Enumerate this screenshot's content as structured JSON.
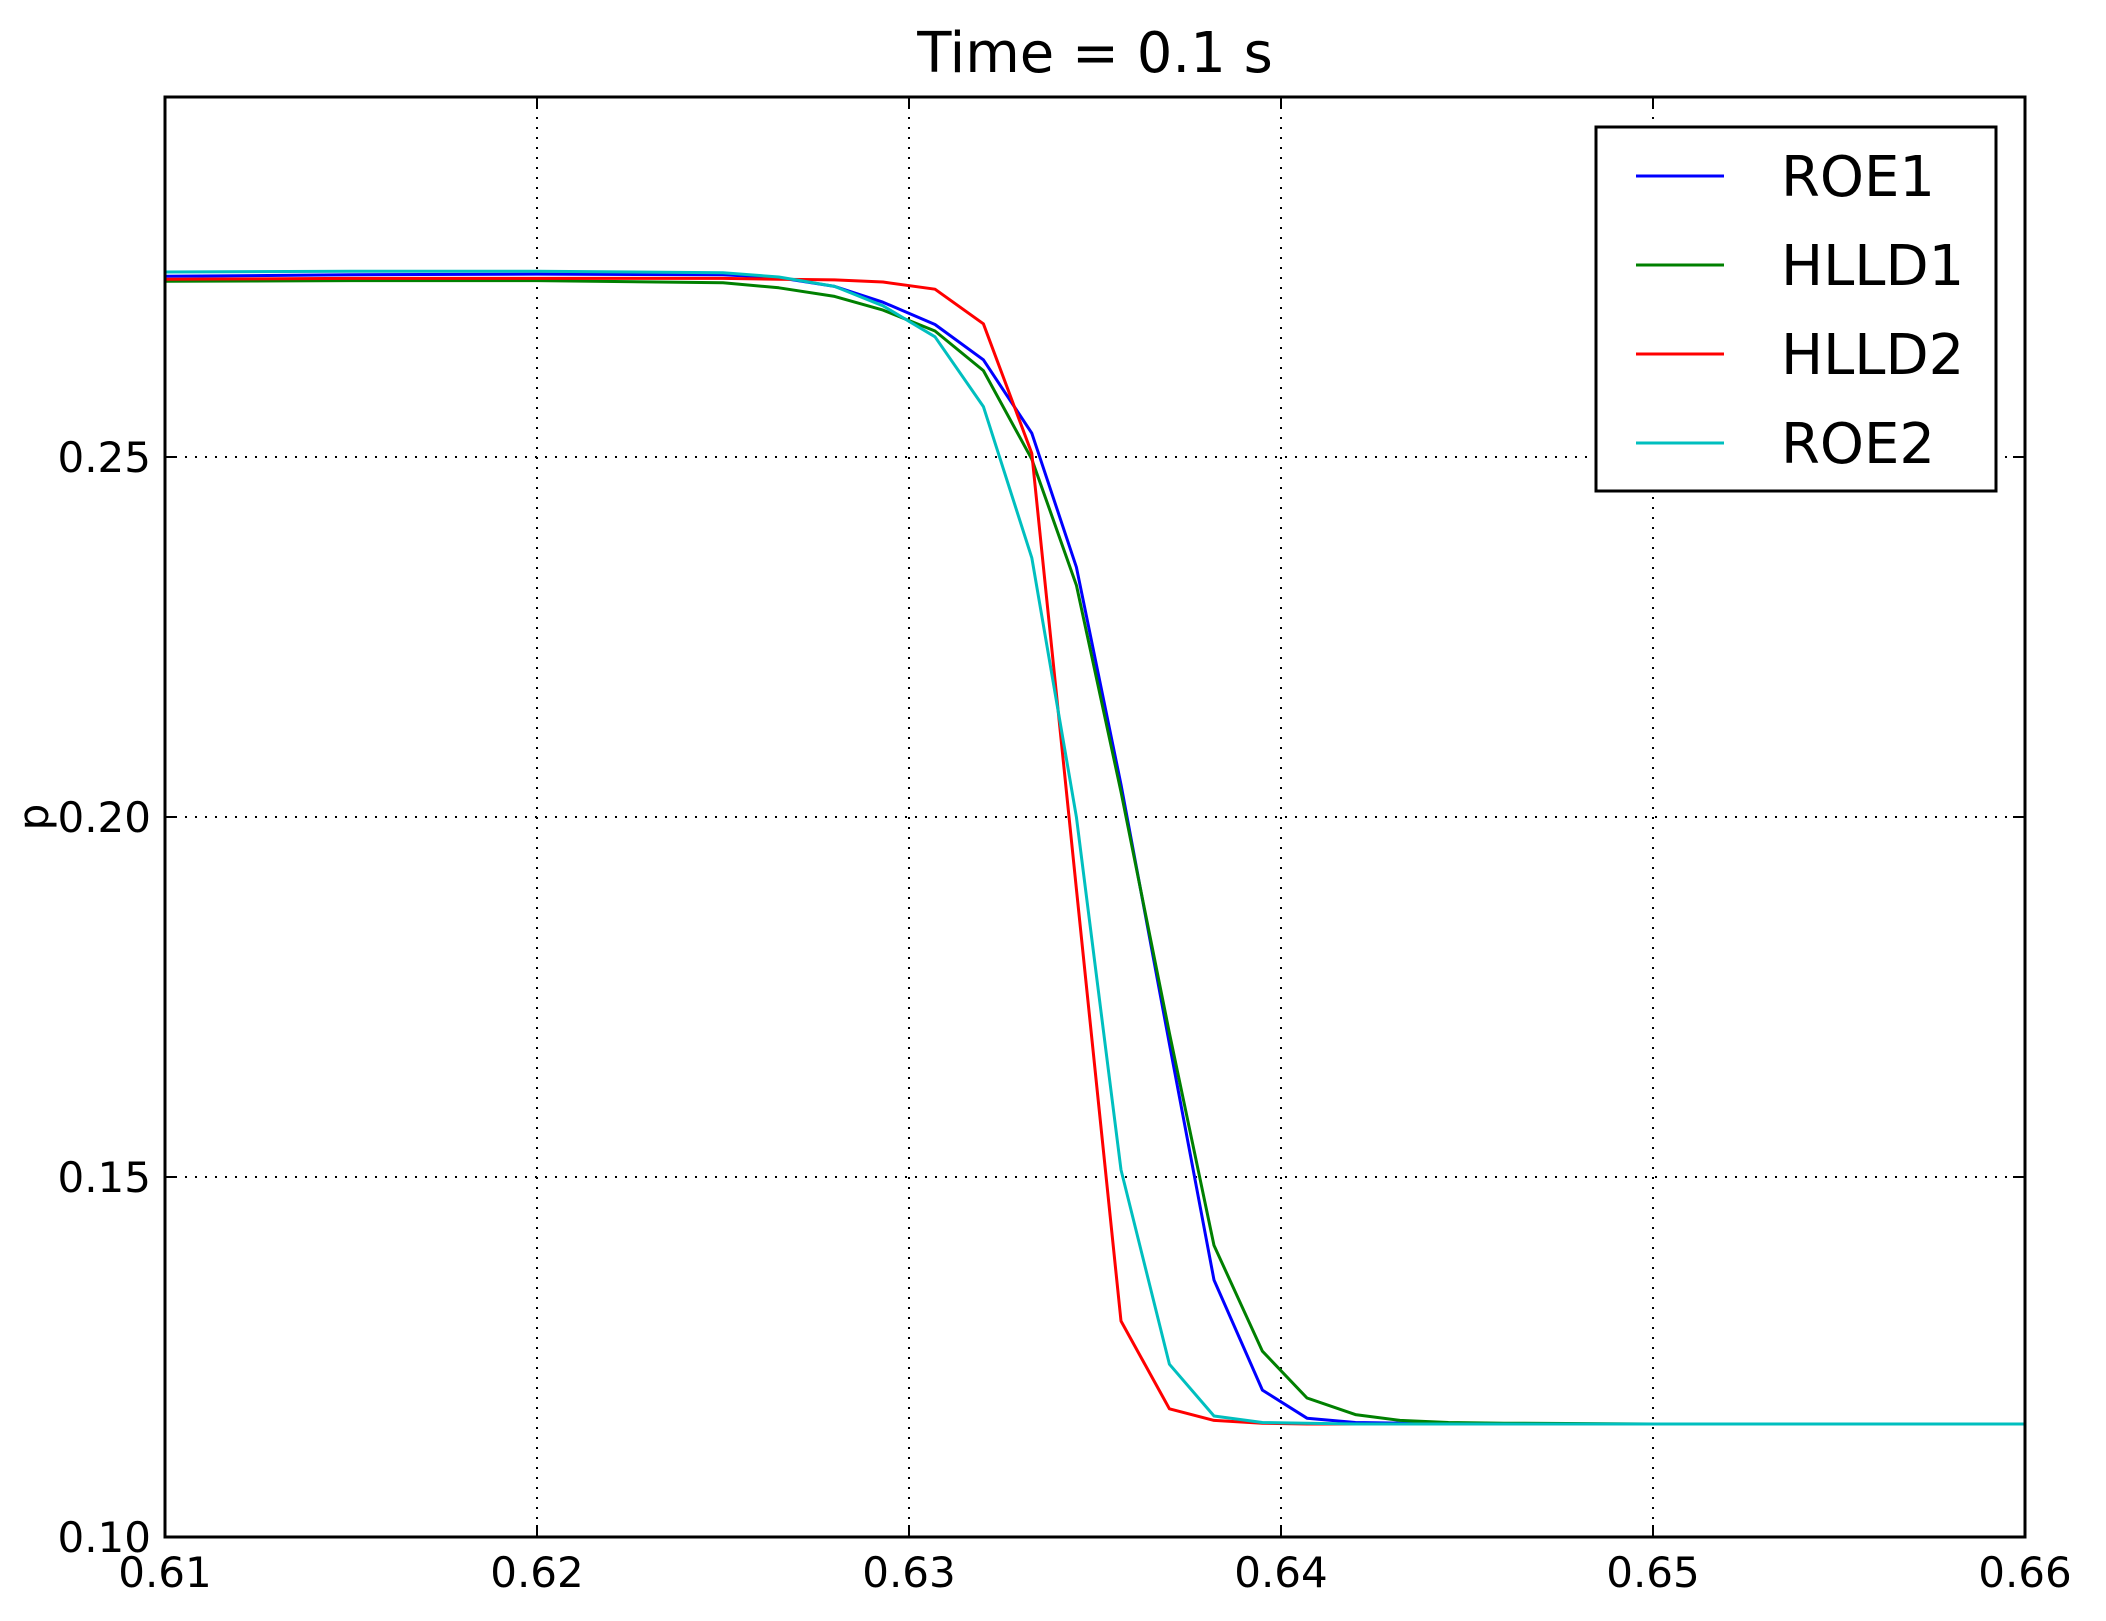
{
  "chart_data": {
    "type": "line",
    "title": "Time = 0.1 s",
    "xlabel": "",
    "ylabel": "p",
    "xlim": [
      0.61,
      0.66
    ],
    "ylim": [
      0.1,
      0.3
    ],
    "xticks": [
      0.61,
      0.62,
      0.63,
      0.64,
      0.65,
      0.66
    ],
    "xtick_labels": [
      "0.61",
      "0.62",
      "0.63",
      "0.64",
      "0.65",
      "0.66"
    ],
    "yticks": [
      0.1,
      0.15,
      0.2,
      0.25
    ],
    "ytick_labels": [
      "0.10",
      "0.15",
      "0.20",
      "0.25"
    ],
    "grid": true,
    "legend_position": "top-right",
    "series": [
      {
        "name": "ROE1",
        "color": "#0000ff",
        "x": [
          0.61,
          0.615,
          0.62,
          0.625,
          0.6265,
          0.628,
          0.6293,
          0.6307,
          0.632,
          0.6333,
          0.6345,
          0.6357,
          0.637,
          0.6382,
          0.6395,
          0.6407,
          0.642,
          0.6432,
          0.6445,
          0.646,
          0.65,
          0.66
        ],
        "y": [
          0.2751,
          0.2753,
          0.2754,
          0.2753,
          0.2749,
          0.2737,
          0.2715,
          0.2684,
          0.2635,
          0.2533,
          0.2347,
          0.2045,
          0.1685,
          0.1357,
          0.1204,
          0.1165,
          0.1159,
          0.1158,
          0.1157,
          0.1157,
          0.1157,
          0.1157
        ]
      },
      {
        "name": "HLLD1",
        "color": "#008000",
        "x": [
          0.61,
          0.615,
          0.62,
          0.625,
          0.6265,
          0.628,
          0.6293,
          0.6307,
          0.632,
          0.6333,
          0.6345,
          0.6357,
          0.637,
          0.6382,
          0.6395,
          0.6407,
          0.642,
          0.6432,
          0.6445,
          0.646,
          0.65,
          0.66
        ],
        "y": [
          0.2744,
          0.2745,
          0.2745,
          0.2742,
          0.2735,
          0.2723,
          0.2704,
          0.2675,
          0.262,
          0.2497,
          0.2322,
          0.2035,
          0.17,
          0.1405,
          0.1258,
          0.1193,
          0.117,
          0.1162,
          0.1159,
          0.1158,
          0.1157,
          0.1157
        ]
      },
      {
        "name": "HLLD2",
        "color": "#ff0000",
        "x": [
          0.61,
          0.615,
          0.62,
          0.625,
          0.6265,
          0.628,
          0.6293,
          0.6307,
          0.632,
          0.6333,
          0.6345,
          0.6357,
          0.637,
          0.6382,
          0.6395,
          0.6407,
          0.642,
          0.646,
          0.65,
          0.66
        ],
        "y": [
          0.2747,
          0.2748,
          0.2748,
          0.2748,
          0.2747,
          0.2746,
          0.2743,
          0.2733,
          0.2685,
          0.2505,
          0.19,
          0.13,
          0.1178,
          0.1162,
          0.1158,
          0.1157,
          0.1157,
          0.1157,
          0.1157,
          0.1157
        ]
      },
      {
        "name": "ROE2",
        "color": "#00bfbf",
        "x": [
          0.61,
          0.615,
          0.62,
          0.625,
          0.6265,
          0.628,
          0.6293,
          0.6307,
          0.632,
          0.6333,
          0.6345,
          0.6357,
          0.637,
          0.6382,
          0.6395,
          0.6407,
          0.642,
          0.646,
          0.65,
          0.66
        ],
        "y": [
          0.2757,
          0.2758,
          0.2758,
          0.2756,
          0.275,
          0.2737,
          0.271,
          0.2667,
          0.257,
          0.236,
          0.2,
          0.151,
          0.124,
          0.1168,
          0.1159,
          0.1158,
          0.1157,
          0.1157,
          0.1157,
          0.1157
        ]
      }
    ]
  }
}
